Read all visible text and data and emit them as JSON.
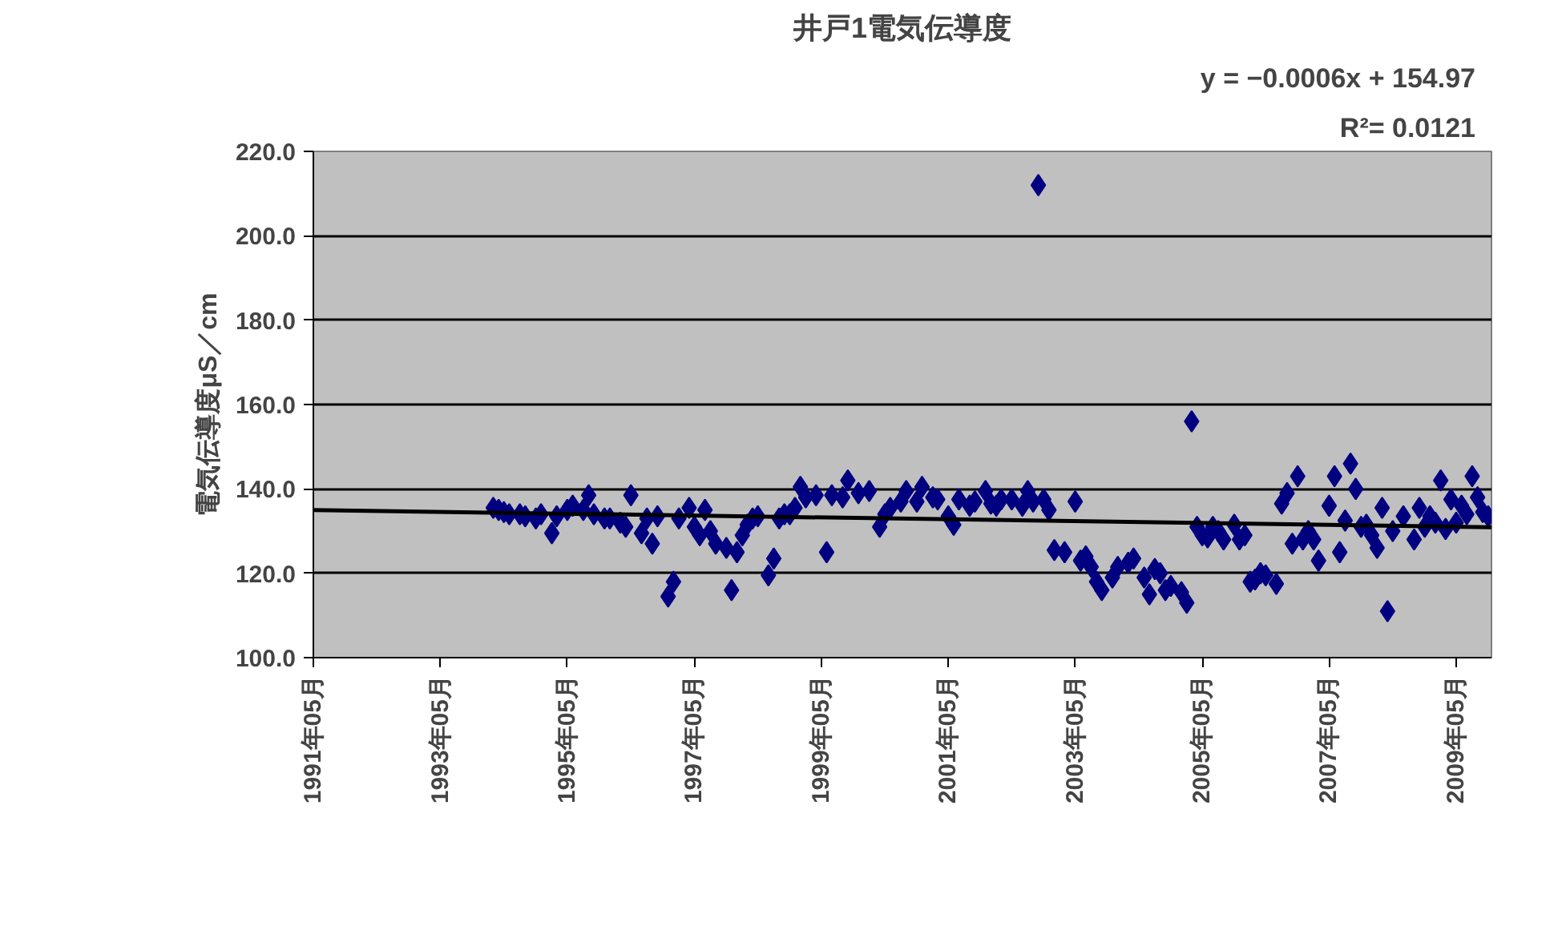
{
  "chart_data": {
    "type": "scatter",
    "title": "井戸1電気伝導度",
    "ylabel": "電気伝導度μS／cm",
    "annotations": [
      "y = −0.0006x + 154.97",
      "R²= 0.0121"
    ],
    "x": [
      "1994-03",
      "1994-04",
      "1994-05",
      "1994-06",
      "1994-08",
      "1994-09",
      "1994-11",
      "1994-12",
      "1995-02",
      "1995-03",
      "1995-05",
      "1995-06",
      "1995-08",
      "1995-09",
      "1995-10",
      "1995-12",
      "1996-01",
      "1996-03",
      "1996-04",
      "1996-05",
      "1996-07",
      "1996-08",
      "1996-09",
      "1996-10",
      "1996-12",
      "1997-01",
      "1997-02",
      "1997-04",
      "1997-05",
      "1997-06",
      "1997-07",
      "1997-08",
      "1997-09",
      "1997-11",
      "1997-12",
      "1998-01",
      "1998-02",
      "1998-03",
      "1998-04",
      "1998-05",
      "1998-07",
      "1998-08",
      "1998-09",
      "1998-10",
      "1998-11",
      "1998-12",
      "1999-01",
      "1999-02",
      "1999-04",
      "1999-06",
      "1999-07",
      "1999-09",
      "1999-10",
      "1999-12",
      "2000-02",
      "2000-04",
      "2000-05",
      "2000-06",
      "2000-08",
      "2000-09",
      "2000-11",
      "2000-12",
      "2001-02",
      "2001-03",
      "2001-05",
      "2001-06",
      "2001-07",
      "2001-09",
      "2001-10",
      "2001-12",
      "2002-01",
      "2002-02",
      "2002-03",
      "2002-05",
      "2002-07",
      "2002-08",
      "2002-09",
      "2002-10",
      "2002-11",
      "2002-12",
      "2003-01",
      "2003-03",
      "2003-05",
      "2003-06",
      "2003-07",
      "2003-08",
      "2003-09",
      "2003-10",
      "2003-12",
      "2004-01",
      "2004-03",
      "2004-04",
      "2004-06",
      "2004-07",
      "2004-08",
      "2004-09",
      "2004-10",
      "2004-11",
      "2005-01",
      "2005-02",
      "2005-03",
      "2005-04",
      "2005-05",
      "2005-06",
      "2005-07",
      "2005-08",
      "2005-09",
      "2005-11",
      "2005-12",
      "2006-01",
      "2006-02",
      "2006-03",
      "2006-04",
      "2006-05",
      "2006-07",
      "2006-08",
      "2006-09",
      "2006-10",
      "2006-11",
      "2006-12",
      "2007-01",
      "2007-02",
      "2007-03",
      "2007-05",
      "2007-06",
      "2007-07",
      "2007-08",
      "2007-09",
      "2007-10",
      "2007-11",
      "2007-12",
      "2008-01",
      "2008-02",
      "2008-03",
      "2008-04",
      "2008-05",
      "2008-07",
      "2008-09",
      "2008-10",
      "2008-11",
      "2008-12",
      "2009-01",
      "2009-02",
      "2009-03",
      "2009-04",
      "2009-05",
      "2009-06",
      "2009-07",
      "2009-08",
      "2009-09",
      "2009-10",
      "2009-11"
    ],
    "series": [
      {
        "color": "#000080",
        "marker": "diamond",
        "values": [
          135.5,
          135,
          134.5,
          134,
          134,
          133.5,
          133,
          134,
          129.5,
          133.5,
          135,
          136,
          135,
          138.5,
          134,
          133,
          133,
          132,
          131,
          138.5,
          129.5,
          133,
          127,
          133.5,
          114.5,
          118,
          133,
          135.5,
          131,
          129,
          135,
          130,
          127,
          126,
          116,
          125,
          129,
          131.5,
          133,
          133.5,
          119.5,
          123.5,
          133,
          134,
          134,
          135.5,
          140.5,
          138,
          138.5,
          125,
          138.5,
          138,
          142,
          139,
          139.5,
          131,
          134,
          135.5,
          137,
          139.5,
          137,
          140.5,
          138,
          137.5,
          133.5,
          131.5,
          137.5,
          136,
          137,
          139.5,
          136.5,
          136,
          137.5,
          137.5,
          136,
          139.5,
          137,
          212,
          137.5,
          135,
          125.5,
          125,
          137,
          123,
          124,
          121.5,
          118,
          116,
          119,
          121.5,
          122.5,
          123.5,
          119,
          115,
          121,
          120,
          116,
          117,
          115.5,
          113,
          156,
          131,
          129,
          128.5,
          131,
          130,
          128,
          131.5,
          128,
          129,
          118,
          118.5,
          120,
          119.5,
          117.5,
          136.5,
          139,
          127,
          143,
          128,
          130,
          128,
          123,
          136,
          143,
          125,
          132.5,
          146,
          140,
          131,
          131.5,
          129,
          126,
          135.5,
          111,
          130,
          133.5,
          128,
          135.5,
          131,
          133.5,
          132,
          142,
          130.5,
          137.5,
          132,
          136,
          134,
          143,
          138,
          134.5,
          133.5
        ]
      },
      {
        "type": "line",
        "color": "#000000",
        "x": [
          "1991-05-01",
          "2009-11-20"
        ],
        "values": [
          135.0,
          130.9
        ]
      }
    ],
    "xlim": [
      "1991-05-01",
      "2009-11-20"
    ],
    "xticks": [
      {
        "value": "1991-05-01",
        "label": "1991年05月"
      },
      {
        "value": "1993-05-01",
        "label": "1993年05月"
      },
      {
        "value": "1995-05-01",
        "label": "1995年05月"
      },
      {
        "value": "1997-05-01",
        "label": "1997年05月"
      },
      {
        "value": "1999-05-01",
        "label": "1999年05月"
      },
      {
        "value": "2001-05-01",
        "label": "2001年05月"
      },
      {
        "value": "2003-05-01",
        "label": "2003年05月"
      },
      {
        "value": "2005-05-01",
        "label": "2005年05月"
      },
      {
        "value": "2007-05-01",
        "label": "2007年05月"
      },
      {
        "value": "2009-05-01",
        "label": "2009年05月"
      }
    ],
    "ylim": [
      100,
      220
    ],
    "yticks": [
      {
        "value": 100,
        "label": "100.0"
      },
      {
        "value": 120,
        "label": "120.0"
      },
      {
        "value": 140,
        "label": "140.0"
      },
      {
        "value": 160,
        "label": "160.0"
      },
      {
        "value": 180,
        "label": "180.0"
      },
      {
        "value": 200,
        "label": "200.0"
      },
      {
        "value": 220,
        "label": "220.0"
      }
    ],
    "grid": "y"
  }
}
